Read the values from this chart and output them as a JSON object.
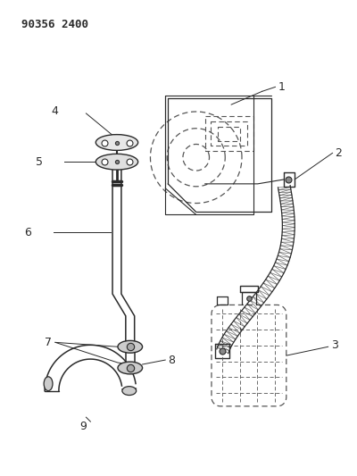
{
  "title": "90356 2400",
  "bg_color": "#ffffff",
  "line_color": "#2a2a2a",
  "dashed_color": "#555555",
  "figsize": [
    4.0,
    5.33
  ],
  "dpi": 100
}
